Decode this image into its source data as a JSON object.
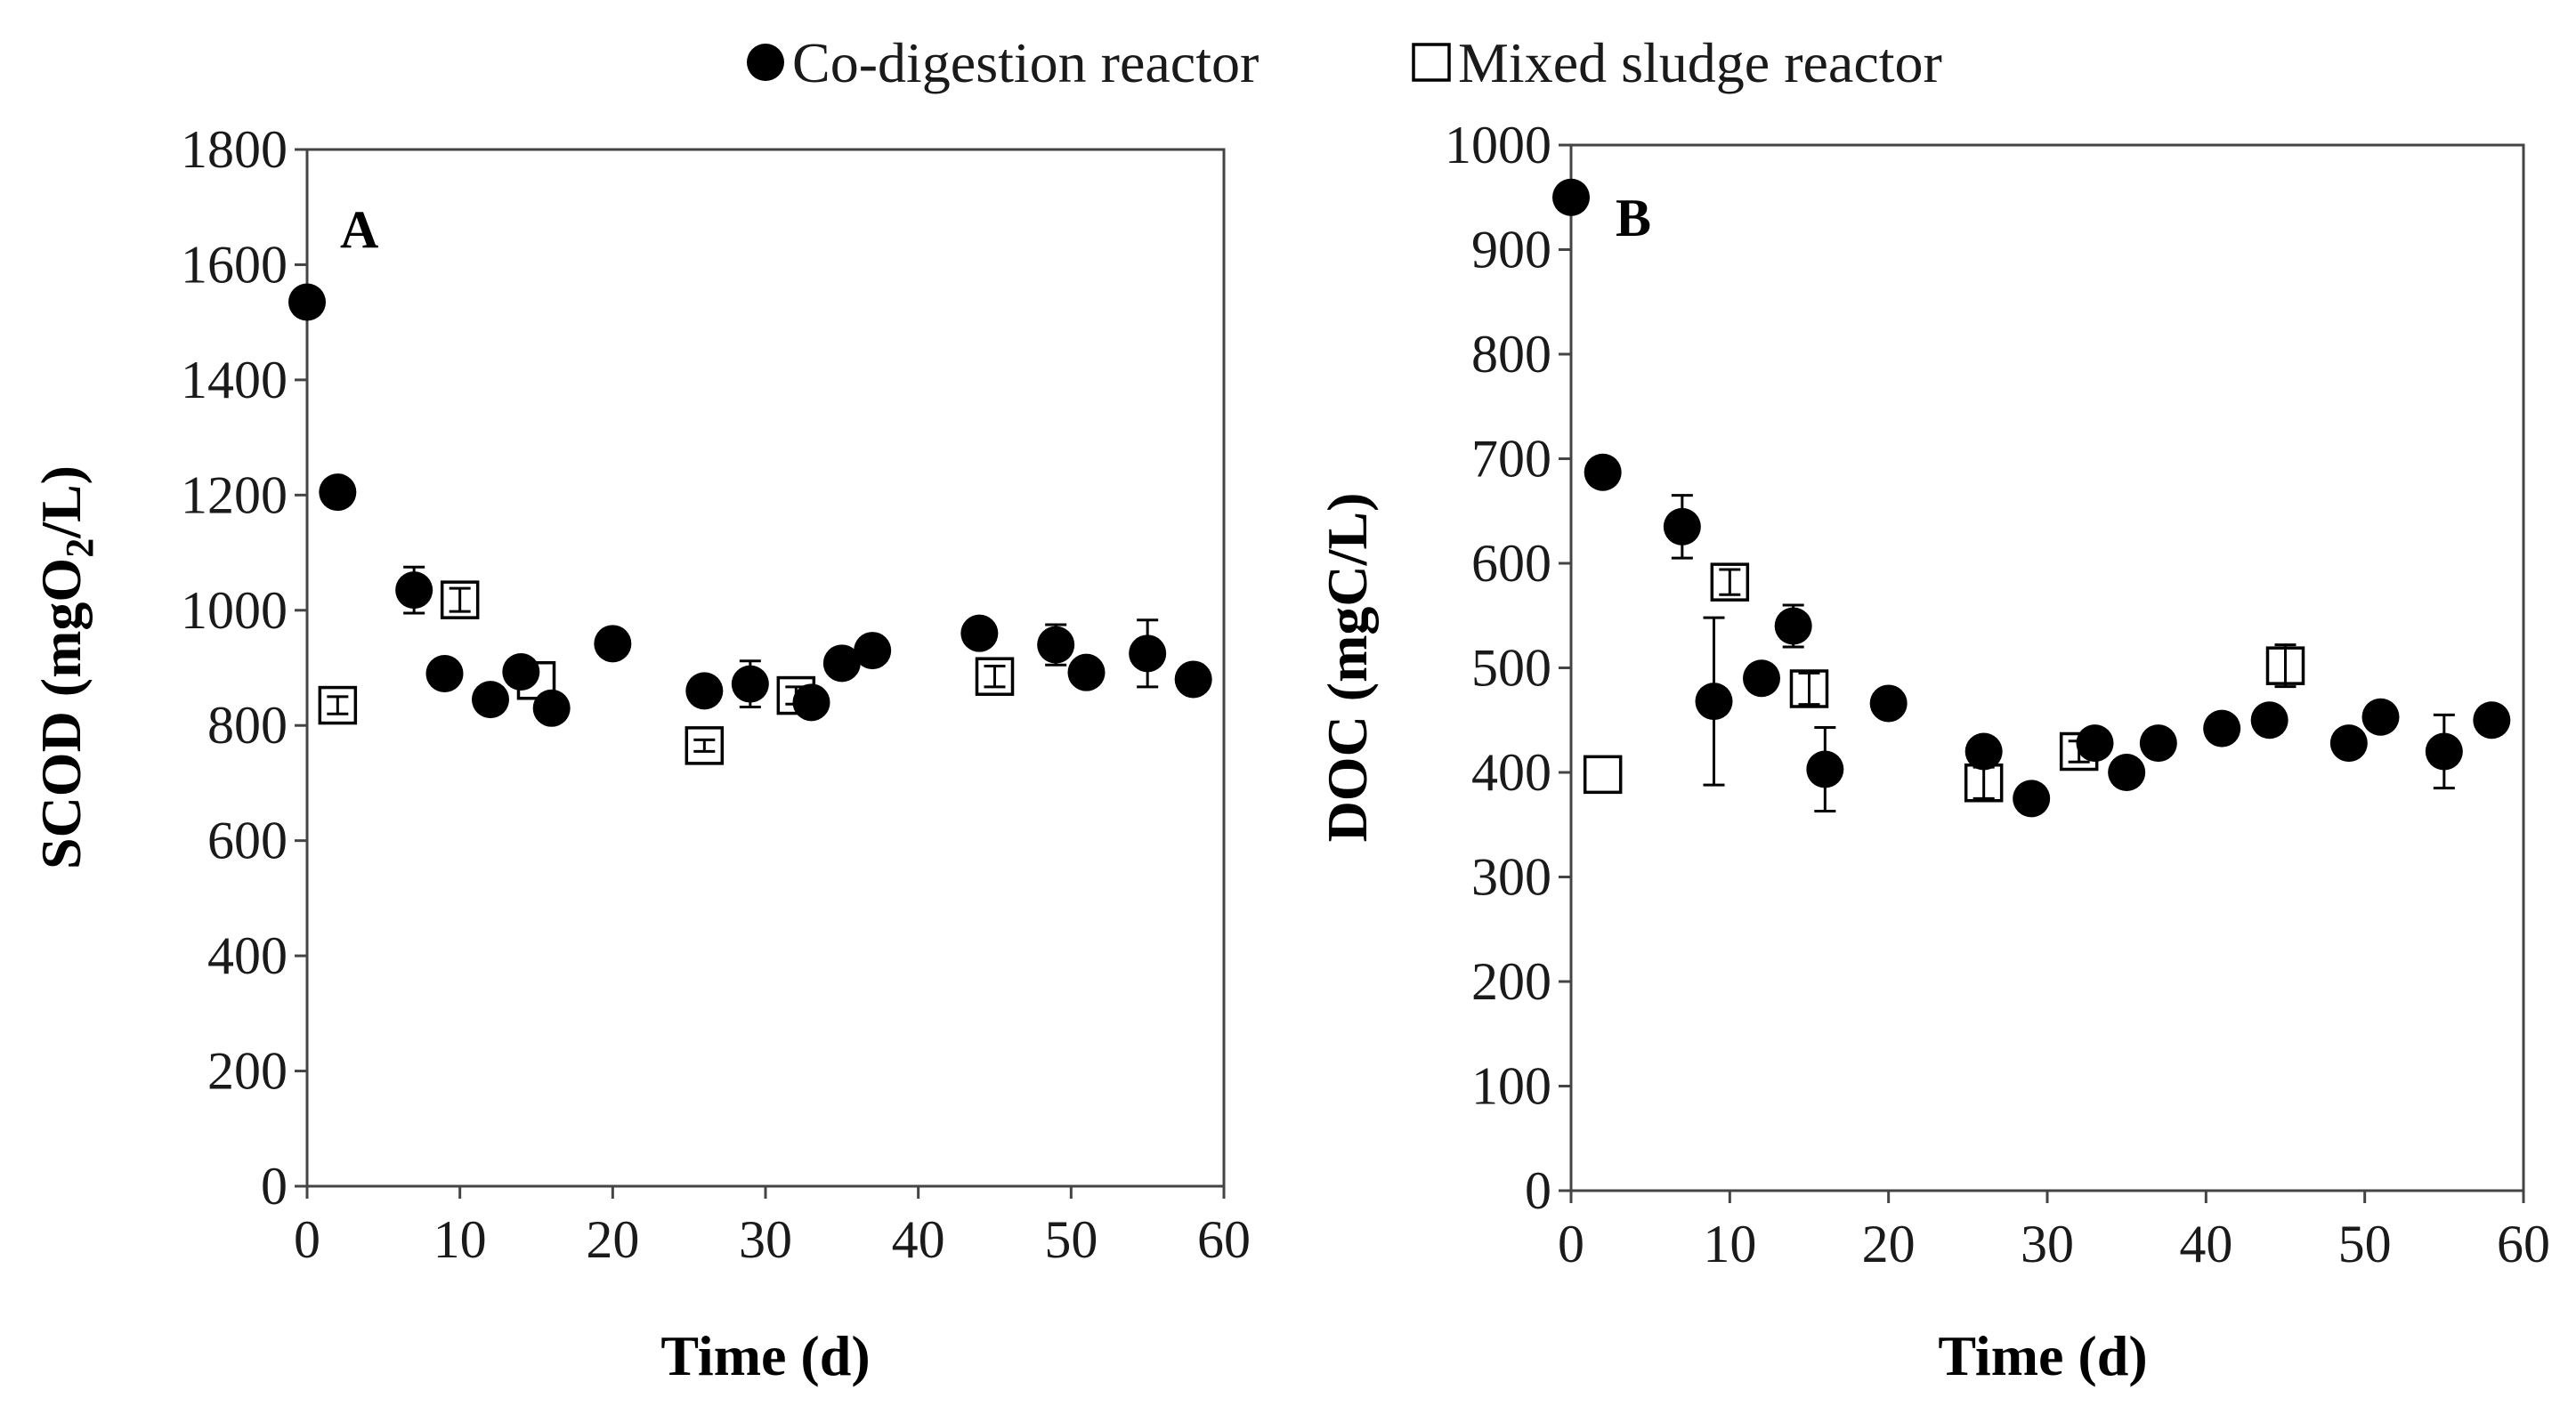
{
  "legend": {
    "codigestion_label": "Co-digestion reactor",
    "mixed_label": "Mixed sludge reactor"
  },
  "chart_data": [
    {
      "type": "scatter",
      "panel": "A",
      "xlabel": "Time (d)",
      "ylabel_main": "SCOD (mgO",
      "ylabel_sub": "2",
      "ylabel_tail": "/L)",
      "xlim": [
        0,
        60
      ],
      "ylim": [
        0,
        1800
      ],
      "xticks": [
        0,
        10,
        20,
        30,
        40,
        50,
        60
      ],
      "yticks": [
        0,
        200,
        400,
        600,
        800,
        1000,
        1200,
        1400,
        1600,
        1800
      ],
      "series": [
        {
          "name": "Co-digestion reactor",
          "marker": "filled-circle",
          "points": [
            {
              "x": 0,
              "y": 1535,
              "err": 0
            },
            {
              "x": 2,
              "y": 1205,
              "err": 0
            },
            {
              "x": 7,
              "y": 1035,
              "err": 40
            },
            {
              "x": 9,
              "y": 890,
              "err": 0
            },
            {
              "x": 12,
              "y": 845,
              "err": 0
            },
            {
              "x": 14,
              "y": 893,
              "err": 0
            },
            {
              "x": 16,
              "y": 830,
              "err": 0
            },
            {
              "x": 20,
              "y": 942,
              "err": 0
            },
            {
              "x": 26,
              "y": 860,
              "err": 0
            },
            {
              "x": 29,
              "y": 872,
              "err": 40
            },
            {
              "x": 33,
              "y": 840,
              "err": 0
            },
            {
              "x": 35,
              "y": 908,
              "err": 0
            },
            {
              "x": 37,
              "y": 930,
              "err": 0
            },
            {
              "x": 44,
              "y": 960,
              "err": 0
            },
            {
              "x": 49,
              "y": 940,
              "err": 35
            },
            {
              "x": 51,
              "y": 892,
              "err": 0
            },
            {
              "x": 55,
              "y": 925,
              "err": 58
            },
            {
              "x": 58,
              "y": 880,
              "err": 0
            }
          ]
        },
        {
          "name": "Mixed sludge reactor",
          "marker": "open-square",
          "points": [
            {
              "x": 2,
              "y": 835,
              "err": 15
            },
            {
              "x": 10,
              "y": 1018,
              "err": 20
            },
            {
              "x": 15,
              "y": 878,
              "err": 0
            },
            {
              "x": 26,
              "y": 765,
              "err": 10
            },
            {
              "x": 32,
              "y": 852,
              "err": 15
            },
            {
              "x": 45,
              "y": 885,
              "err": 18
            }
          ]
        }
      ]
    },
    {
      "type": "scatter",
      "panel": "B",
      "xlabel": "Time (d)",
      "ylabel_main": "DOC (mgC/L)",
      "ylabel_sub": "",
      "ylabel_tail": "",
      "xlim": [
        0,
        60
      ],
      "ylim": [
        0,
        1000
      ],
      "xticks": [
        0,
        10,
        20,
        30,
        40,
        50,
        60
      ],
      "yticks": [
        0,
        100,
        200,
        300,
        400,
        500,
        600,
        700,
        800,
        900,
        1000
      ],
      "series": [
        {
          "name": "Co-digestion reactor",
          "marker": "filled-circle",
          "points": [
            {
              "x": 0,
              "y": 950,
              "err": 0
            },
            {
              "x": 2,
              "y": 687,
              "err": 0
            },
            {
              "x": 7,
              "y": 635,
              "err": 30
            },
            {
              "x": 9,
              "y": 468,
              "err": 80
            },
            {
              "x": 12,
              "y": 490,
              "err": 0
            },
            {
              "x": 14,
              "y": 540,
              "err": 20
            },
            {
              "x": 16,
              "y": 403,
              "err": 40
            },
            {
              "x": 20,
              "y": 466,
              "err": 0
            },
            {
              "x": 26,
              "y": 420,
              "err": 0
            },
            {
              "x": 29,
              "y": 375,
              "err": 0
            },
            {
              "x": 33,
              "y": 428,
              "err": 0
            },
            {
              "x": 35,
              "y": 400,
              "err": 0
            },
            {
              "x": 37,
              "y": 428,
              "err": 0
            },
            {
              "x": 41,
              "y": 442,
              "err": 0
            },
            {
              "x": 44,
              "y": 450,
              "err": 0
            },
            {
              "x": 49,
              "y": 428,
              "err": 0
            },
            {
              "x": 51,
              "y": 453,
              "err": 0
            },
            {
              "x": 55,
              "y": 420,
              "err": 35
            },
            {
              "x": 58,
              "y": 450,
              "err": 0
            }
          ]
        },
        {
          "name": "Mixed sludge reactor",
          "marker": "open-square",
          "points": [
            {
              "x": 2,
              "y": 398,
              "err": 0
            },
            {
              "x": 10,
              "y": 582,
              "err": 12
            },
            {
              "x": 15,
              "y": 480,
              "err": 15
            },
            {
              "x": 26,
              "y": 390,
              "err": 15
            },
            {
              "x": 32,
              "y": 420,
              "err": 10
            },
            {
              "x": 45,
              "y": 502,
              "err": 20
            }
          ]
        }
      ]
    }
  ]
}
